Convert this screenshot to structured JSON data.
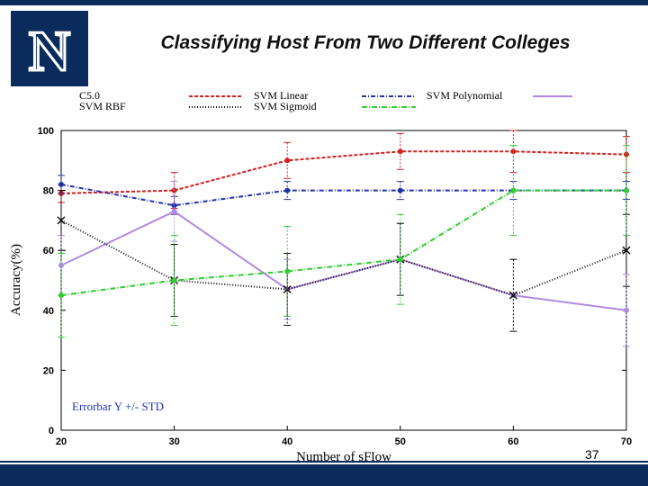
{
  "slide": {
    "title": "Classifying Host From Two Different Colleges",
    "page_number": "37",
    "logo_letter": "N",
    "colors": {
      "navy": "#0b2b5c",
      "logo_outline": "#ffffff"
    }
  },
  "chart_data": {
    "type": "line",
    "title": "",
    "xlabel": "Number of sFlow",
    "ylabel": "Accuracy(%)",
    "x": [
      20,
      30,
      40,
      50,
      60,
      70
    ],
    "xlim": [
      20,
      70
    ],
    "ylim": [
      0,
      100
    ],
    "xticks": [
      "20",
      "30",
      "40",
      "50",
      "60",
      "70"
    ],
    "yticks": [
      "0",
      "20",
      "40",
      "60",
      "80",
      "100"
    ],
    "annotation": "Errorbar Y +/- STD",
    "series": [
      {
        "name": "C5.0",
        "color": "#d42020",
        "dash": "4,2",
        "values": [
          79,
          80,
          90,
          93,
          93,
          92
        ],
        "err": [
          3,
          6,
          6,
          6,
          7,
          6
        ]
      },
      {
        "name": "SVM Linear",
        "color": "#2233aa",
        "dash": "5,2,1,2",
        "values": [
          82,
          75,
          80,
          80,
          80,
          80
        ],
        "err": [
          3,
          3,
          3,
          3,
          3,
          3
        ]
      },
      {
        "name": "SVM Polynomial",
        "color": "#b08ae0",
        "dash": "",
        "values": [
          55,
          73,
          47,
          57,
          45,
          40
        ],
        "err": [
          10,
          10,
          10,
          12,
          12,
          12
        ]
      },
      {
        "name": "SVM RBF",
        "color": "#111111",
        "dash": "1,2",
        "values": [
          70,
          50,
          47,
          57,
          45,
          60
        ],
        "err": [
          10,
          12,
          12,
          12,
          12,
          12
        ]
      },
      {
        "name": "SVM Sigmoid",
        "color": "#33cc33",
        "dash": "6,2,1,2",
        "values": [
          45,
          50,
          53,
          57,
          80,
          80
        ],
        "err": [
          14,
          15,
          15,
          15,
          15,
          15
        ]
      }
    ]
  }
}
